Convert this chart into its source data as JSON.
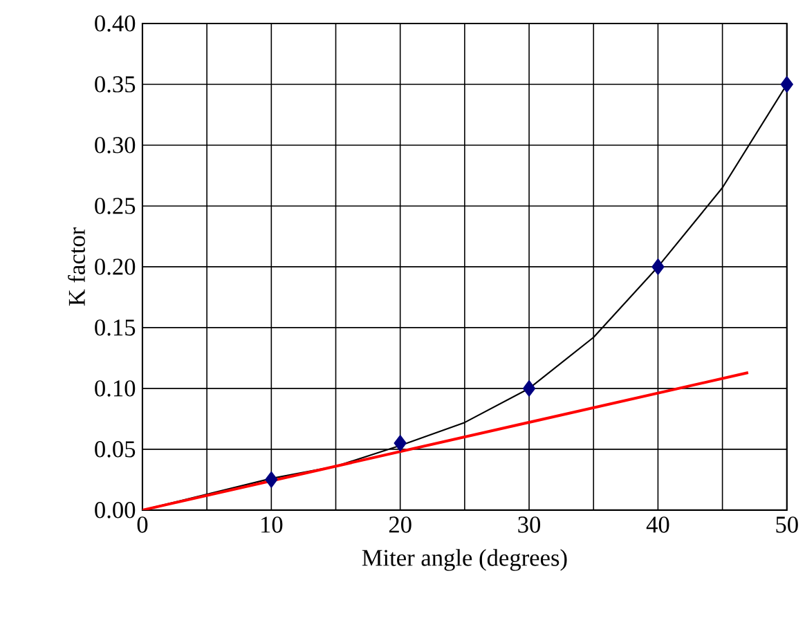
{
  "chart_data": {
    "type": "scatter",
    "xlabel": "Miter angle (degrees)",
    "ylabel": "K factor",
    "series": [
      {
        "color": "#000080",
        "marker": "diamond",
        "x": [
          10,
          20,
          30,
          40,
          50
        ],
        "values": [
          0.025,
          0.055,
          0.1,
          0.2,
          0.35
        ]
      },
      {
        "type": "line",
        "color": "#000000",
        "marker": "none",
        "x": [
          0,
          5,
          10,
          15,
          20,
          25,
          30,
          35,
          40,
          45,
          50
        ],
        "values": [
          0,
          0.013,
          0.026,
          0.036,
          0.053,
          0.072,
          0.1,
          0.142,
          0.2,
          0.265,
          0.35
        ]
      },
      {
        "type": "line",
        "color": "#ff0000",
        "marker": "none",
        "x": [
          0,
          47
        ],
        "values": [
          0,
          0.113
        ]
      }
    ],
    "xlim": [
      0,
      50
    ],
    "ylim": [
      0,
      0.4
    ],
    "xticks": [
      0,
      {
        "value": 5,
        "label": null
      },
      10,
      {
        "value": 15,
        "label": null
      },
      20,
      {
        "value": 25,
        "label": null
      },
      30,
      {
        "value": 35,
        "label": null
      },
      40,
      {
        "value": 45,
        "label": null
      },
      50
    ],
    "yticks": [
      {
        "value": 0,
        "label": "0.00"
      },
      {
        "value": 0.05,
        "label": "0.05"
      },
      {
        "value": 0.1,
        "label": "0.10"
      },
      {
        "value": 0.15,
        "label": "0.15"
      },
      {
        "value": 0.2,
        "label": "0.20"
      },
      {
        "value": 0.25,
        "label": "0.25"
      },
      {
        "value": 0.3,
        "label": "0.30"
      },
      {
        "value": 0.35,
        "label": "0.35"
      },
      {
        "value": 0.4,
        "label": "0.40"
      }
    ],
    "grid": true
  }
}
